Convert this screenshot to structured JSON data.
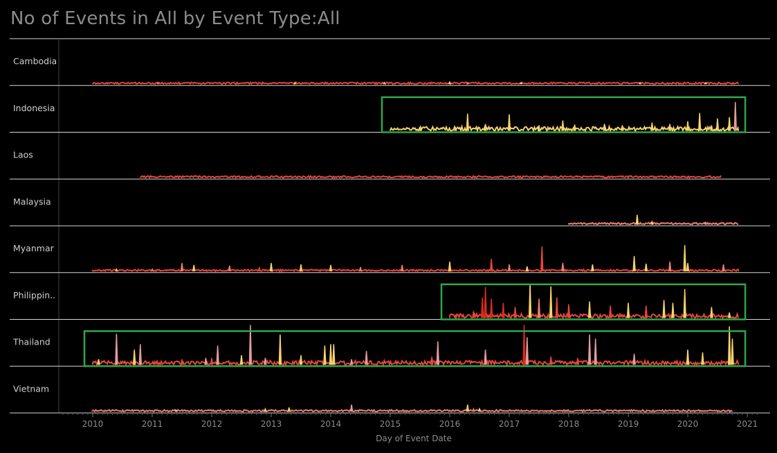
{
  "chart_data": {
    "type": "line",
    "title": "No of Events in All by Event Type:All",
    "xlabel": "Day of Event Date",
    "ylabel": "",
    "xlim": [
      2009.45,
      2021.27
    ],
    "x_ticks": [
      "2010",
      "2011",
      "2012",
      "2013",
      "2014",
      "2015",
      "2016",
      "2017",
      "2018",
      "2019",
      "2020",
      "2021"
    ],
    "grid": false,
    "colors": {
      "background": "#000000",
      "dark_red": "#d92b1d",
      "red": "#e8453a",
      "salmon": "#ee8070",
      "pink": "#e59b9b",
      "yellow": "#f6d16d",
      "highlight": "#2ea84b",
      "rule": "#d9d9d9",
      "axis_text": "#8c8c8c",
      "title_text": "#8c8c8c",
      "row_label_text": "#cfcfcf"
    },
    "rows": [
      {
        "label": "Cambodia",
        "start": 2010.0,
        "end": 2020.85,
        "spikes": [
          [
            2011.1,
            2,
            "salmon"
          ],
          [
            2013.4,
            2,
            "yellow"
          ],
          [
            2014.9,
            2,
            "yellow"
          ],
          [
            2016.0,
            3,
            "yellow"
          ],
          [
            2016.3,
            2,
            "salmon"
          ],
          [
            2017.2,
            2,
            "yellow"
          ],
          [
            2019.2,
            2,
            "yellow"
          ],
          [
            2020.3,
            2,
            "yellow"
          ]
        ],
        "base_color": "red",
        "highlighted": false
      },
      {
        "label": "Indonesia",
        "start": 2015.0,
        "end": 2020.85,
        "spikes": [
          [
            2015.5,
            4,
            "yellow"
          ],
          [
            2016.1,
            4,
            "yellow"
          ],
          [
            2016.3,
            25,
            "yellow"
          ],
          [
            2016.6,
            10,
            "yellow"
          ],
          [
            2017.0,
            24,
            "yellow"
          ],
          [
            2017.5,
            8,
            "yellow"
          ],
          [
            2017.9,
            15,
            "yellow"
          ],
          [
            2018.1,
            9,
            "yellow"
          ],
          [
            2018.6,
            10,
            "yellow"
          ],
          [
            2018.9,
            8,
            "yellow"
          ],
          [
            2019.4,
            12,
            "yellow"
          ],
          [
            2019.7,
            10,
            "yellow"
          ],
          [
            2020.0,
            14,
            "yellow"
          ],
          [
            2020.2,
            26,
            "yellow"
          ],
          [
            2020.4,
            8,
            "yellow"
          ],
          [
            2020.5,
            18,
            "yellow"
          ],
          [
            2020.7,
            20,
            "yellow"
          ],
          [
            2020.8,
            42,
            "pink"
          ]
        ],
        "base_color": "yellow",
        "highlighted": true
      },
      {
        "label": "Laos",
        "start": 2010.8,
        "end": 2020.55,
        "spikes": [
          [
            2016.1,
            1,
            "red"
          ]
        ],
        "base_color": "red",
        "highlighted": false
      },
      {
        "label": "Malaysia",
        "start": 2018.0,
        "end": 2020.85,
        "spikes": [
          [
            2019.15,
            14,
            "yellow"
          ],
          [
            2019.4,
            4,
            "yellow"
          ],
          [
            2020.3,
            3,
            "pink"
          ]
        ],
        "base_color": "salmon",
        "highlighted": false
      },
      {
        "label": "Myanmar",
        "start": 2010.0,
        "end": 2020.85,
        "spikes": [
          [
            2010.4,
            3,
            "yellow"
          ],
          [
            2011.0,
            3,
            "salmon"
          ],
          [
            2011.5,
            12,
            "salmon"
          ],
          [
            2011.7,
            9,
            "yellow"
          ],
          [
            2012.3,
            8,
            "salmon"
          ],
          [
            2012.8,
            6,
            "red"
          ],
          [
            2013.0,
            12,
            "yellow"
          ],
          [
            2013.5,
            10,
            "yellow"
          ],
          [
            2014.0,
            9,
            "yellow"
          ],
          [
            2014.5,
            6,
            "salmon"
          ],
          [
            2015.2,
            9,
            "salmon"
          ],
          [
            2016.0,
            14,
            "yellow"
          ],
          [
            2016.7,
            18,
            "red"
          ],
          [
            2017.0,
            10,
            "salmon"
          ],
          [
            2017.3,
            7,
            "yellow"
          ],
          [
            2017.55,
            36,
            "red"
          ],
          [
            2017.9,
            12,
            "salmon"
          ],
          [
            2018.4,
            10,
            "yellow"
          ],
          [
            2019.1,
            22,
            "yellow"
          ],
          [
            2019.3,
            11,
            "yellow"
          ],
          [
            2019.7,
            14,
            "salmon"
          ],
          [
            2020.0,
            12,
            "yellow"
          ],
          [
            2020.6,
            10,
            "salmon"
          ],
          [
            2019.95,
            38,
            "yellow"
          ]
        ],
        "base_color": "red",
        "highlighted": false
      },
      {
        "label": "Philippin..",
        "start": 2016.0,
        "end": 2020.85,
        "spikes": [
          [
            2016.1,
            4,
            "red"
          ],
          [
            2016.4,
            10,
            "red"
          ],
          [
            2016.55,
            30,
            "dark_red"
          ],
          [
            2016.6,
            45,
            "dark_red"
          ],
          [
            2016.7,
            28,
            "dark_red"
          ],
          [
            2016.9,
            22,
            "dark_red"
          ],
          [
            2017.1,
            16,
            "red"
          ],
          [
            2017.35,
            50,
            "yellow"
          ],
          [
            2017.5,
            28,
            "salmon"
          ],
          [
            2017.7,
            46,
            "yellow"
          ],
          [
            2017.8,
            30,
            "red"
          ],
          [
            2018.0,
            20,
            "red"
          ],
          [
            2018.35,
            24,
            "yellow"
          ],
          [
            2018.7,
            18,
            "red"
          ],
          [
            2019.0,
            22,
            "yellow"
          ],
          [
            2019.3,
            18,
            "red"
          ],
          [
            2019.6,
            26,
            "yellow"
          ],
          [
            2019.75,
            22,
            "yellow"
          ],
          [
            2019.95,
            42,
            "yellow"
          ],
          [
            2020.4,
            16,
            "yellow"
          ],
          [
            2020.7,
            8,
            "yellow"
          ]
        ],
        "base_color": "red",
        "highlighted": true
      },
      {
        "label": "Thailand",
        "start": 2010.0,
        "end": 2020.85,
        "spikes": [
          [
            2010.1,
            8,
            "yellow"
          ],
          [
            2010.4,
            45,
            "pink"
          ],
          [
            2010.7,
            22,
            "yellow"
          ],
          [
            2010.8,
            30,
            "pink"
          ],
          [
            2011.5,
            8,
            "red"
          ],
          [
            2011.9,
            10,
            "pink"
          ],
          [
            2012.0,
            10,
            "red"
          ],
          [
            2012.1,
            28,
            "pink"
          ],
          [
            2012.5,
            14,
            "yellow"
          ],
          [
            2012.65,
            58,
            "pink"
          ],
          [
            2012.9,
            10,
            "pink"
          ],
          [
            2013.15,
            44,
            "yellow"
          ],
          [
            2013.5,
            14,
            "yellow"
          ],
          [
            2013.9,
            28,
            "yellow"
          ],
          [
            2014.0,
            30,
            "yellow"
          ],
          [
            2014.05,
            30,
            "yellow"
          ],
          [
            2014.35,
            8,
            "pink"
          ],
          [
            2014.6,
            20,
            "pink"
          ],
          [
            2015.7,
            12,
            "red"
          ],
          [
            2015.8,
            34,
            "pink"
          ],
          [
            2016.6,
            22,
            "pink"
          ],
          [
            2017.25,
            58,
            "dark_red"
          ],
          [
            2017.3,
            40,
            "pink"
          ],
          [
            2017.7,
            12,
            "red"
          ],
          [
            2018.15,
            10,
            "red"
          ],
          [
            2018.35,
            44,
            "pink"
          ],
          [
            2018.45,
            38,
            "pink"
          ],
          [
            2019.1,
            16,
            "pink"
          ],
          [
            2020.0,
            22,
            "yellow"
          ],
          [
            2020.25,
            18,
            "yellow"
          ],
          [
            2020.7,
            56,
            "yellow"
          ],
          [
            2020.75,
            38,
            "yellow"
          ]
        ],
        "base_color": "red",
        "highlighted": true
      },
      {
        "label": "Vietnam",
        "start": 2010.0,
        "end": 2020.75,
        "spikes": [
          [
            2010.0,
            2,
            "red"
          ],
          [
            2011.4,
            2,
            "yellow"
          ],
          [
            2012.9,
            4,
            "yellow"
          ],
          [
            2013.3,
            6,
            "yellow"
          ],
          [
            2014.35,
            10,
            "pink"
          ],
          [
            2016.3,
            10,
            "yellow"
          ],
          [
            2016.4,
            4,
            "salmon"
          ],
          [
            2016.5,
            4,
            "yellow"
          ]
        ],
        "base_color": "salmon",
        "highlighted": false
      }
    ]
  }
}
